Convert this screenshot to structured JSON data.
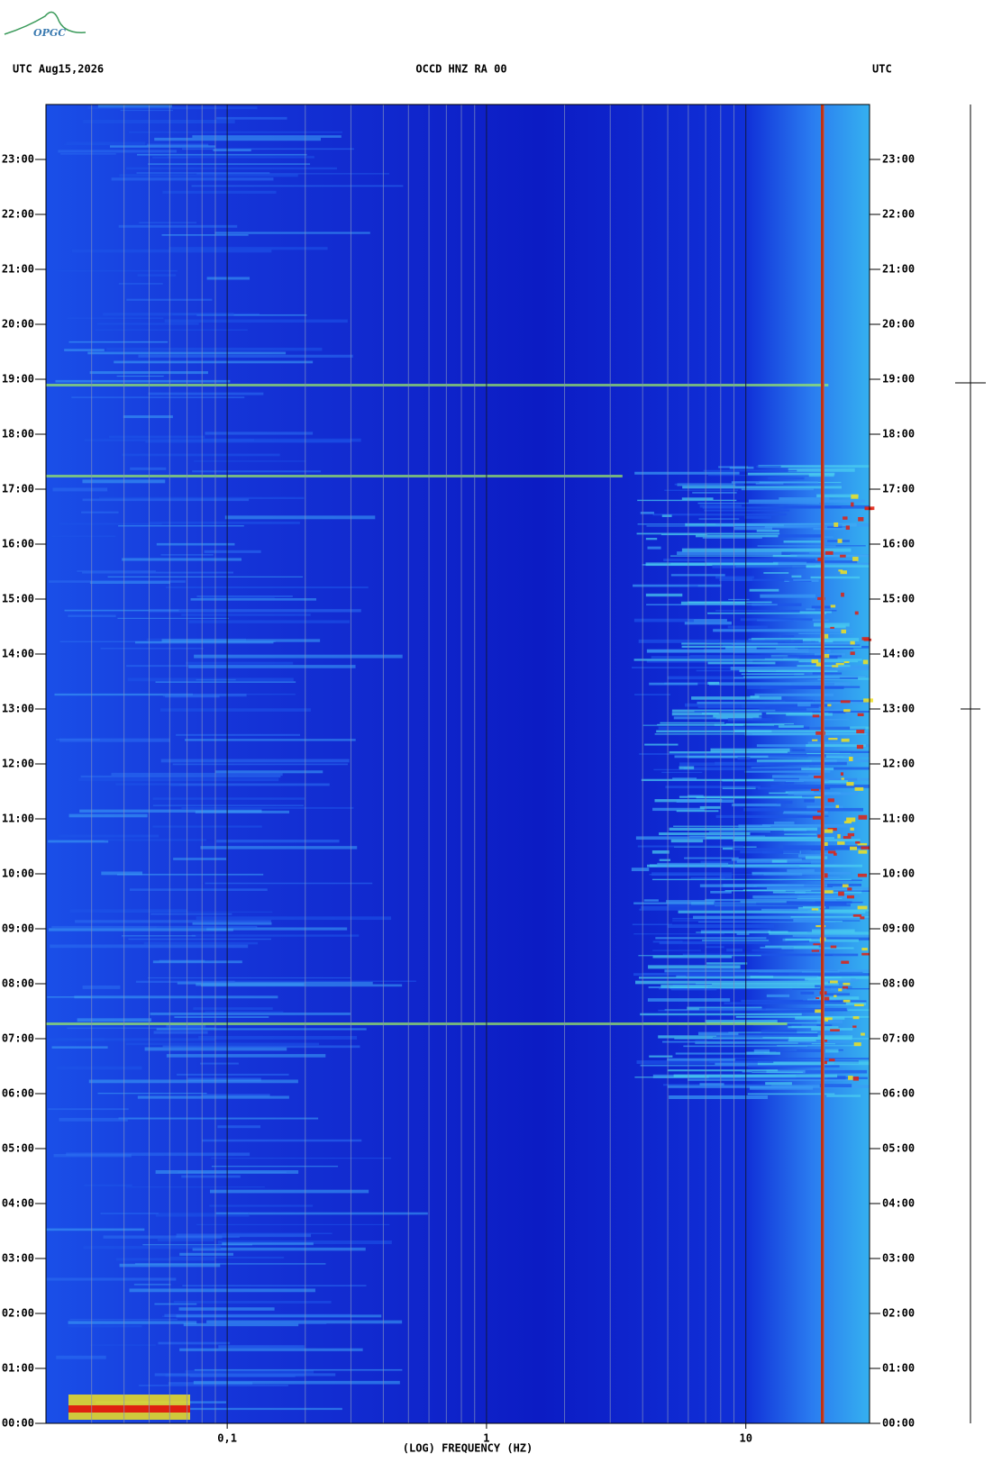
{
  "logo": "OPGC",
  "chart_data": {
    "type": "spectrogram",
    "header_left": "UTC  Aug15,2026",
    "title": "OCCD HNZ RA 00",
    "header_right": "UTC",
    "xlabel": "(LOG) FREQUENCY (HZ)",
    "xlim": [
      0.02,
      30
    ],
    "log_x": true,
    "grid": true,
    "xticks": [
      {
        "value": 0.1,
        "label": "0,1"
      },
      1,
      10
    ],
    "ylim": [
      0,
      24
    ],
    "yticks": [
      {
        "value": 0,
        "label": "00:00"
      },
      {
        "value": 1,
        "label": "01:00"
      },
      {
        "value": 2,
        "label": "02:00"
      },
      {
        "value": 3,
        "label": "03:00"
      },
      {
        "value": 4,
        "label": "04:00"
      },
      {
        "value": 5,
        "label": "05:00"
      },
      {
        "value": 6,
        "label": "06:00"
      },
      {
        "value": 7,
        "label": "07:00"
      },
      {
        "value": 8,
        "label": "08:00"
      },
      {
        "value": 9,
        "label": "09:00"
      },
      {
        "value": 10,
        "label": "10:00"
      },
      {
        "value": 11,
        "label": "11:00"
      },
      {
        "value": 12,
        "label": "12:00"
      },
      {
        "value": 13,
        "label": "13:00"
      },
      {
        "value": 14,
        "label": "14:00"
      },
      {
        "value": 15,
        "label": "15:00"
      },
      {
        "value": 16,
        "label": "16:00"
      },
      {
        "value": 17,
        "label": "17:00"
      },
      {
        "value": 18,
        "label": "18:00"
      },
      {
        "value": 19,
        "label": "19:00"
      },
      {
        "value": 20,
        "label": "20:00"
      },
      {
        "value": 21,
        "label": "21:00"
      },
      {
        "value": 22,
        "label": "22:00"
      },
      {
        "value": 23,
        "label": "23:00"
      }
    ]
  }
}
